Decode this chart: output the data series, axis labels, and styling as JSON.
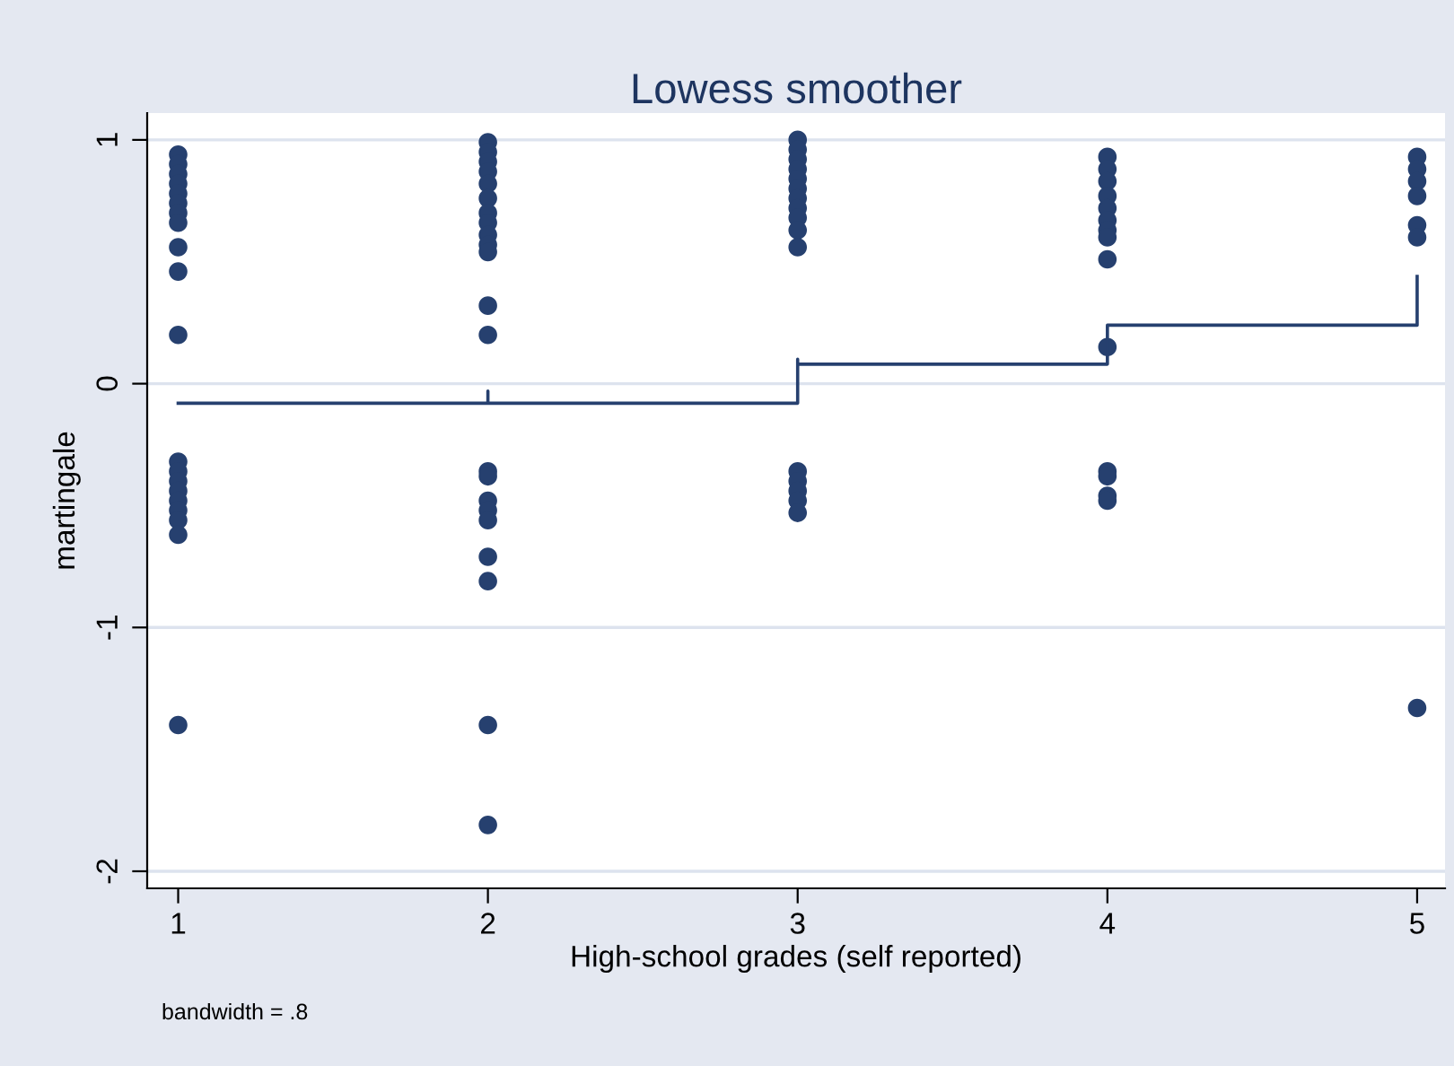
{
  "chart_data": {
    "type": "scatter",
    "title": "Lowess smoother",
    "xlabel": "High-school grades (self reported)",
    "ylabel": "martingale",
    "annotations": [
      "bandwidth = .8"
    ],
    "xlim": [
      0.9,
      5.09
    ],
    "ylim": [
      -2.07,
      1.11
    ],
    "xticks": [
      1,
      2,
      3,
      4,
      5
    ],
    "yticks": [
      -2,
      -1,
      0,
      1
    ],
    "grid": "y",
    "series": [
      {
        "marker": "circle",
        "color": "#26406f",
        "x": [
          1,
          1,
          1,
          1,
          1,
          1,
          1,
          1,
          1,
          1,
          1,
          1,
          1,
          1,
          1,
          1,
          1,
          1,
          1,
          1,
          2,
          2,
          2,
          2,
          2,
          2,
          2,
          2,
          2,
          2,
          2,
          2,
          2,
          2,
          2,
          2,
          2,
          2,
          2,
          2,
          2,
          2,
          3,
          3,
          3,
          3,
          3,
          3,
          3,
          3,
          3,
          3,
          3,
          3,
          3,
          3,
          3,
          3,
          4,
          4,
          4,
          4,
          4,
          4,
          4,
          4,
          4,
          4,
          4,
          4,
          4,
          4,
          5,
          5,
          5,
          5,
          5,
          5,
          5
        ],
        "values": [
          0.94,
          0.9,
          0.86,
          0.82,
          0.78,
          0.74,
          0.7,
          0.66,
          0.56,
          0.46,
          0.2,
          -0.32,
          -0.36,
          -0.4,
          -0.44,
          -0.48,
          -0.52,
          -0.56,
          -0.62,
          -1.4,
          0.99,
          0.95,
          0.91,
          0.87,
          0.82,
          0.76,
          0.7,
          0.66,
          0.61,
          0.57,
          0.54,
          0.32,
          0.2,
          -0.36,
          -0.38,
          -0.48,
          -0.52,
          -0.56,
          -0.71,
          -0.81,
          -1.4,
          -1.81,
          1.0,
          0.96,
          0.92,
          0.88,
          0.84,
          0.8,
          0.76,
          0.72,
          0.68,
          0.63,
          0.56,
          -0.36,
          -0.4,
          -0.44,
          -0.48,
          -0.53,
          0.93,
          0.88,
          0.83,
          0.77,
          0.72,
          0.67,
          0.63,
          0.6,
          0.51,
          0.15,
          -0.36,
          -0.38,
          -0.46,
          -0.48,
          0.93,
          0.88,
          0.83,
          0.77,
          0.65,
          0.6,
          -1.33
        ]
      },
      {
        "type": "line",
        "marker": "none",
        "color": "#26406f",
        "x": [
          1,
          2,
          2,
          2,
          3,
          3,
          3,
          4,
          4,
          5,
          5
        ],
        "values": [
          -0.08,
          -0.08,
          -0.03,
          -0.08,
          -0.08,
          0.1,
          0.08,
          0.08,
          0.24,
          0.24,
          0.44
        ]
      }
    ]
  }
}
